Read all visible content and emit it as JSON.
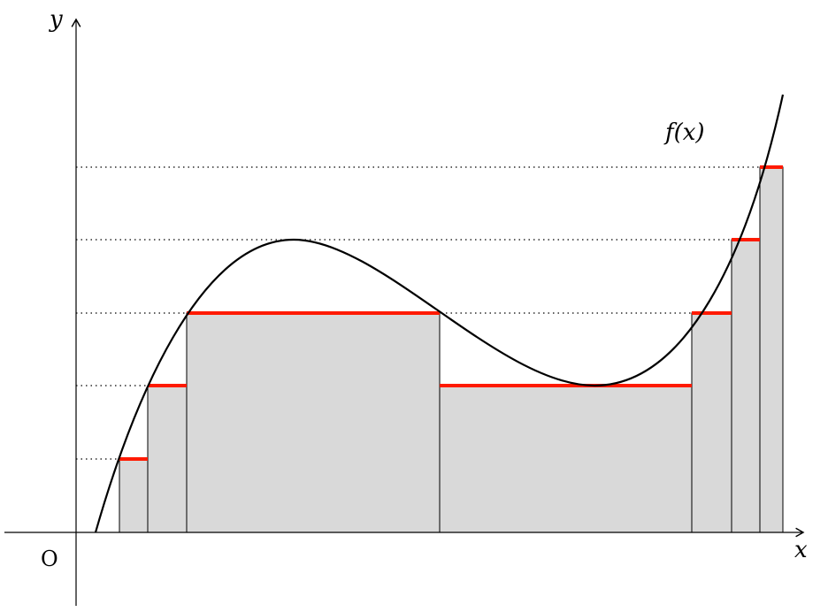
{
  "labels": {
    "y_axis": "y",
    "x_axis": "x",
    "origin": "O",
    "function": "f(x)"
  },
  "colors": {
    "fill": "#d9d9d9",
    "level_line": "#ff1a00",
    "curve": "#000000"
  }
}
